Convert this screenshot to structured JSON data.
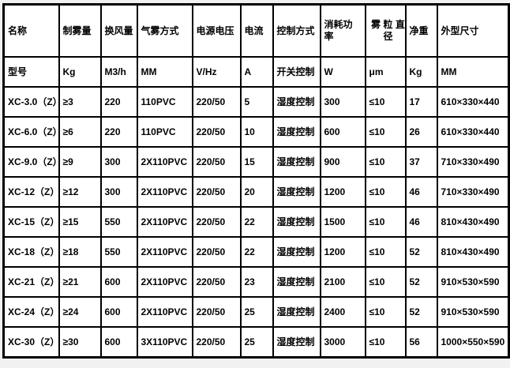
{
  "table": {
    "headers": [
      "名称",
      "制雾量",
      "换风量",
      "气雾方式",
      "电源电压",
      "电流",
      "控制方式",
      "消耗功率",
      "雾 粒 直 径",
      "净重",
      "外型尺寸"
    ],
    "units": [
      "型号",
      "Kg",
      "M3/h",
      "MM",
      "V/Hz",
      "A",
      "开关控制",
      "W",
      "μm",
      "Kg",
      "MM"
    ],
    "rows": [
      [
        "XC-3.0（Z）",
        "≥3",
        "220",
        "110PVC",
        "220/50",
        "5",
        "湿度控制",
        "300",
        "≤10",
        "17",
        "610×330×440"
      ],
      [
        "XC-6.0（Z）",
        "≥6",
        "220",
        "110PVC",
        "220/50",
        "10",
        "湿度控制",
        "600",
        "≤10",
        "26",
        "610×330×440"
      ],
      [
        "XC-9.0（Z）",
        "≥9",
        "300",
        "2X110PVC",
        "220/50",
        "15",
        "湿度控制",
        "900",
        "≤10",
        "37",
        "710×330×490"
      ],
      [
        "XC-12（Z）",
        "≥12",
        "300",
        "2X110PVC",
        "220/50",
        "20",
        "湿度控制",
        "1200",
        "≤10",
        "46",
        "710×330×490"
      ],
      [
        "XC-15（Z）",
        "≥15",
        "550",
        "2X110PVC",
        "220/50",
        "22",
        "湿度控制",
        "1500",
        "≤10",
        "46",
        "810×430×490"
      ],
      [
        "XC-18（Z）",
        "≥18",
        "550",
        "2X110PVC",
        "220/50",
        "22",
        "湿度控制",
        "1200",
        "≤10",
        "52",
        "810×430×490"
      ],
      [
        "XC-21（Z）",
        "≥21",
        "600",
        "2X110PVC",
        "220/50",
        "23",
        "湿度控制",
        "2100",
        "≤10",
        "52",
        "910×530×590"
      ],
      [
        "XC-24（Z）",
        "≥24",
        "600",
        "2X110PVC",
        "220/50",
        "25",
        "湿度控制",
        "2400",
        "≤10",
        "52",
        "910×530×590"
      ],
      [
        "XC-30（Z）",
        "≥30",
        "600",
        "3X110PVC",
        "220/50",
        "25",
        "湿度控制",
        "3000",
        "≤10",
        "56",
        "1000×550×590"
      ]
    ],
    "colors": {
      "border": "#000000",
      "text": "#000000",
      "background": "#ffffff",
      "page_margin": "#f1f1f1"
    }
  }
}
